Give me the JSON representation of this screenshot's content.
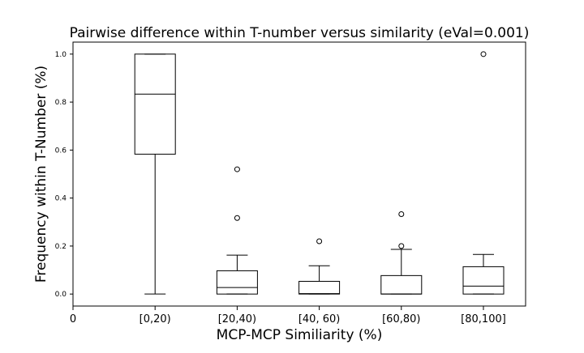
{
  "chart_data": {
    "type": "box",
    "title": "Pairwise difference within T-number versus similarity (eVal=0.001)",
    "xlabel": "MCP-MCP Similiarity (%)",
    "ylabel": "Frequency within T-Number (%)",
    "x_ticks": [
      "0",
      "[0,20)",
      "[20,40)",
      "[40, 60)",
      "[60,80)",
      "[80,100]"
    ],
    "y_ticks": [
      "0.0",
      "0.2",
      "0.4",
      "0.6",
      "0.8",
      "1.0"
    ],
    "ylim": [
      -0.05,
      1.05
    ],
    "grid": false,
    "boxes": [
      {
        "category": "[0,20)",
        "whisker_low": 0.0,
        "q1": 0.583,
        "median": 0.833,
        "q3": 1.0,
        "whisker_high": 1.0,
        "outliers": []
      },
      {
        "category": "[20,40)",
        "whisker_low": 0.0,
        "q1": 0.0,
        "median": 0.027,
        "q3": 0.097,
        "whisker_high": 0.162,
        "outliers": [
          0.317,
          0.52
        ]
      },
      {
        "category": "[40, 60)",
        "whisker_low": 0.0,
        "q1": 0.0,
        "median": 0.002,
        "q3": 0.053,
        "whisker_high": 0.118,
        "outliers": [
          0.22
        ]
      },
      {
        "category": "[60,80)",
        "whisker_low": 0.0,
        "q1": 0.0,
        "median": 0.0,
        "q3": 0.077,
        "whisker_high": 0.186,
        "outliers": [
          0.2,
          0.333
        ]
      },
      {
        "category": "[80,100]",
        "whisker_low": 0.0,
        "q1": 0.0,
        "median": 0.033,
        "q3": 0.114,
        "whisker_high": 0.165,
        "outliers": [
          1.0
        ]
      }
    ]
  }
}
